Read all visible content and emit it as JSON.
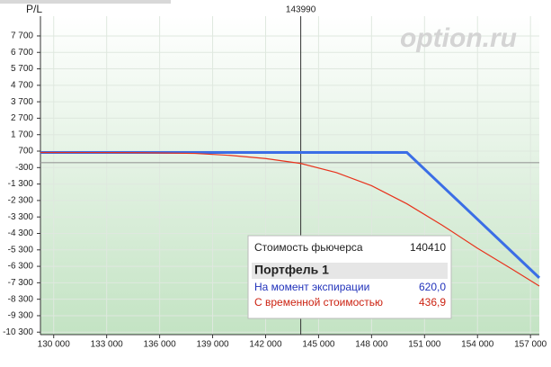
{
  "chart_data": {
    "type": "line",
    "y_label": "P/L",
    "watermark": "option.ru",
    "cursor": 143990,
    "x": [
      129250,
      132000,
      135000,
      138000,
      140000,
      142000,
      144000,
      146000,
      148000,
      150000,
      152000,
      154000,
      156000,
      157500
    ],
    "series": [
      {
        "name": "На момент экспирации",
        "color": "#3b6ee6",
        "values": [
          620,
          620,
          620,
          620,
          620,
          620,
          620,
          620,
          620,
          620,
          -1412,
          -3444,
          -5476,
          -7000
        ]
      },
      {
        "name": "С временной стоимостью",
        "color": "#e8321c",
        "values": [
          620,
          615,
          605,
          560,
          440,
          250,
          -50,
          -600,
          -1400,
          -2500,
          -3800,
          -5200,
          -6500,
          -7500
        ]
      }
    ],
    "xlim": [
      129250,
      157500
    ],
    "ylim": [
      -10450,
      8900
    ],
    "xticks": [
      {
        "value": 130000,
        "label": "130 000"
      },
      {
        "value": 133000,
        "label": "133 000"
      },
      {
        "value": 136000,
        "label": "136 000"
      },
      {
        "value": 139000,
        "label": "139 000"
      },
      {
        "value": 142000,
        "label": "142 000"
      },
      {
        "value": 145000,
        "label": "145 000"
      },
      {
        "value": 148000,
        "label": "148 000"
      },
      {
        "value": 151000,
        "label": "151 000"
      },
      {
        "value": 154000,
        "label": "154 000"
      },
      {
        "value": 157000,
        "label": "157 000"
      }
    ],
    "yticks": [
      {
        "value": 7700,
        "label": "7 700"
      },
      {
        "value": 6700,
        "label": "6 700"
      },
      {
        "value": 5700,
        "label": "5 700"
      },
      {
        "value": 4700,
        "label": "4 700"
      },
      {
        "value": 3700,
        "label": "3 700"
      },
      {
        "value": 2700,
        "label": "2 700"
      },
      {
        "value": 1700,
        "label": "1 700"
      },
      700,
      -300,
      {
        "value": -1300,
        "label": "-1 300"
      },
      {
        "value": -2300,
        "label": "-2 300"
      },
      {
        "value": -3300,
        "label": "-3 300"
      },
      {
        "value": -4300,
        "label": "-4 300"
      },
      {
        "value": -5300,
        "label": "-5 300"
      },
      {
        "value": -6300,
        "label": "-6 300"
      },
      {
        "value": -7300,
        "label": "-7 300"
      },
      {
        "value": -8300,
        "label": "-8 300"
      },
      {
        "value": -9300,
        "label": "-9 300"
      },
      {
        "value": -10300,
        "label": "-10 300"
      }
    ],
    "grid": true,
    "zero_line": 0
  },
  "tooltip": {
    "price_label": "Стоимость фьючерса",
    "price": 140410,
    "portfolio": "Портфель 1",
    "rows": [
      [
        "На момент экспирации",
        "620,0"
      ],
      [
        "С временной стоимостью",
        "436,9"
      ]
    ]
  }
}
